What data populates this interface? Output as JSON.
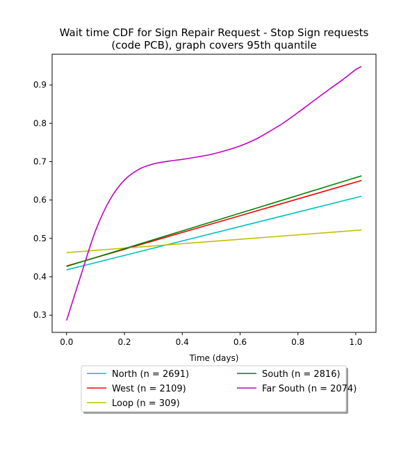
{
  "chart_data": {
    "type": "line",
    "title": "Wait time CDF for Sign Repair Request - Stop Sign  requests\n(code PCB), graph covers 95th quantile",
    "xlabel": "Time (days)",
    "ylabel": "",
    "xlim": [
      -0.05,
      1.07
    ],
    "ylim": [
      0.255,
      0.98
    ],
    "x_ticks": [
      0.0,
      0.2,
      0.4,
      0.6,
      0.8,
      1.0
    ],
    "y_ticks": [
      0.3,
      0.4,
      0.5,
      0.6,
      0.7,
      0.8,
      0.9
    ],
    "grid": false,
    "legend_position": "below",
    "series": [
      {
        "name": "North (n = 2691)",
        "color": "#00bfbf",
        "x": [
          0.0,
          1.02
        ],
        "y": [
          0.418,
          0.61
        ]
      },
      {
        "name": "West (n = 2109)",
        "color": "#ff0000",
        "x": [
          0.0,
          1.02
        ],
        "y": [
          0.428,
          0.651
        ]
      },
      {
        "name": "Loop (n = 309)",
        "color": "#bfbf00",
        "x": [
          0.0,
          1.02
        ],
        "y": [
          0.463,
          0.522
        ]
      },
      {
        "name": "South (n = 2816)",
        "color": "#008000",
        "x": [
          0.0,
          1.02
        ],
        "y": [
          0.427,
          0.663
        ]
      },
      {
        "name": "Far South (n = 2074)",
        "color": "#bf00bf",
        "x": [
          0.0,
          0.05,
          0.1,
          0.15,
          0.2,
          0.25,
          0.3,
          0.35,
          0.4,
          0.45,
          0.5,
          0.55,
          0.6,
          0.65,
          0.7,
          0.75,
          0.8,
          0.85,
          0.9,
          0.95,
          1.0,
          1.02
        ],
        "y": [
          0.286,
          0.405,
          0.52,
          0.601,
          0.652,
          0.68,
          0.694,
          0.701,
          0.706,
          0.712,
          0.719,
          0.729,
          0.741,
          0.757,
          0.778,
          0.801,
          0.828,
          0.856,
          0.884,
          0.911,
          0.94,
          0.948
        ]
      }
    ]
  }
}
